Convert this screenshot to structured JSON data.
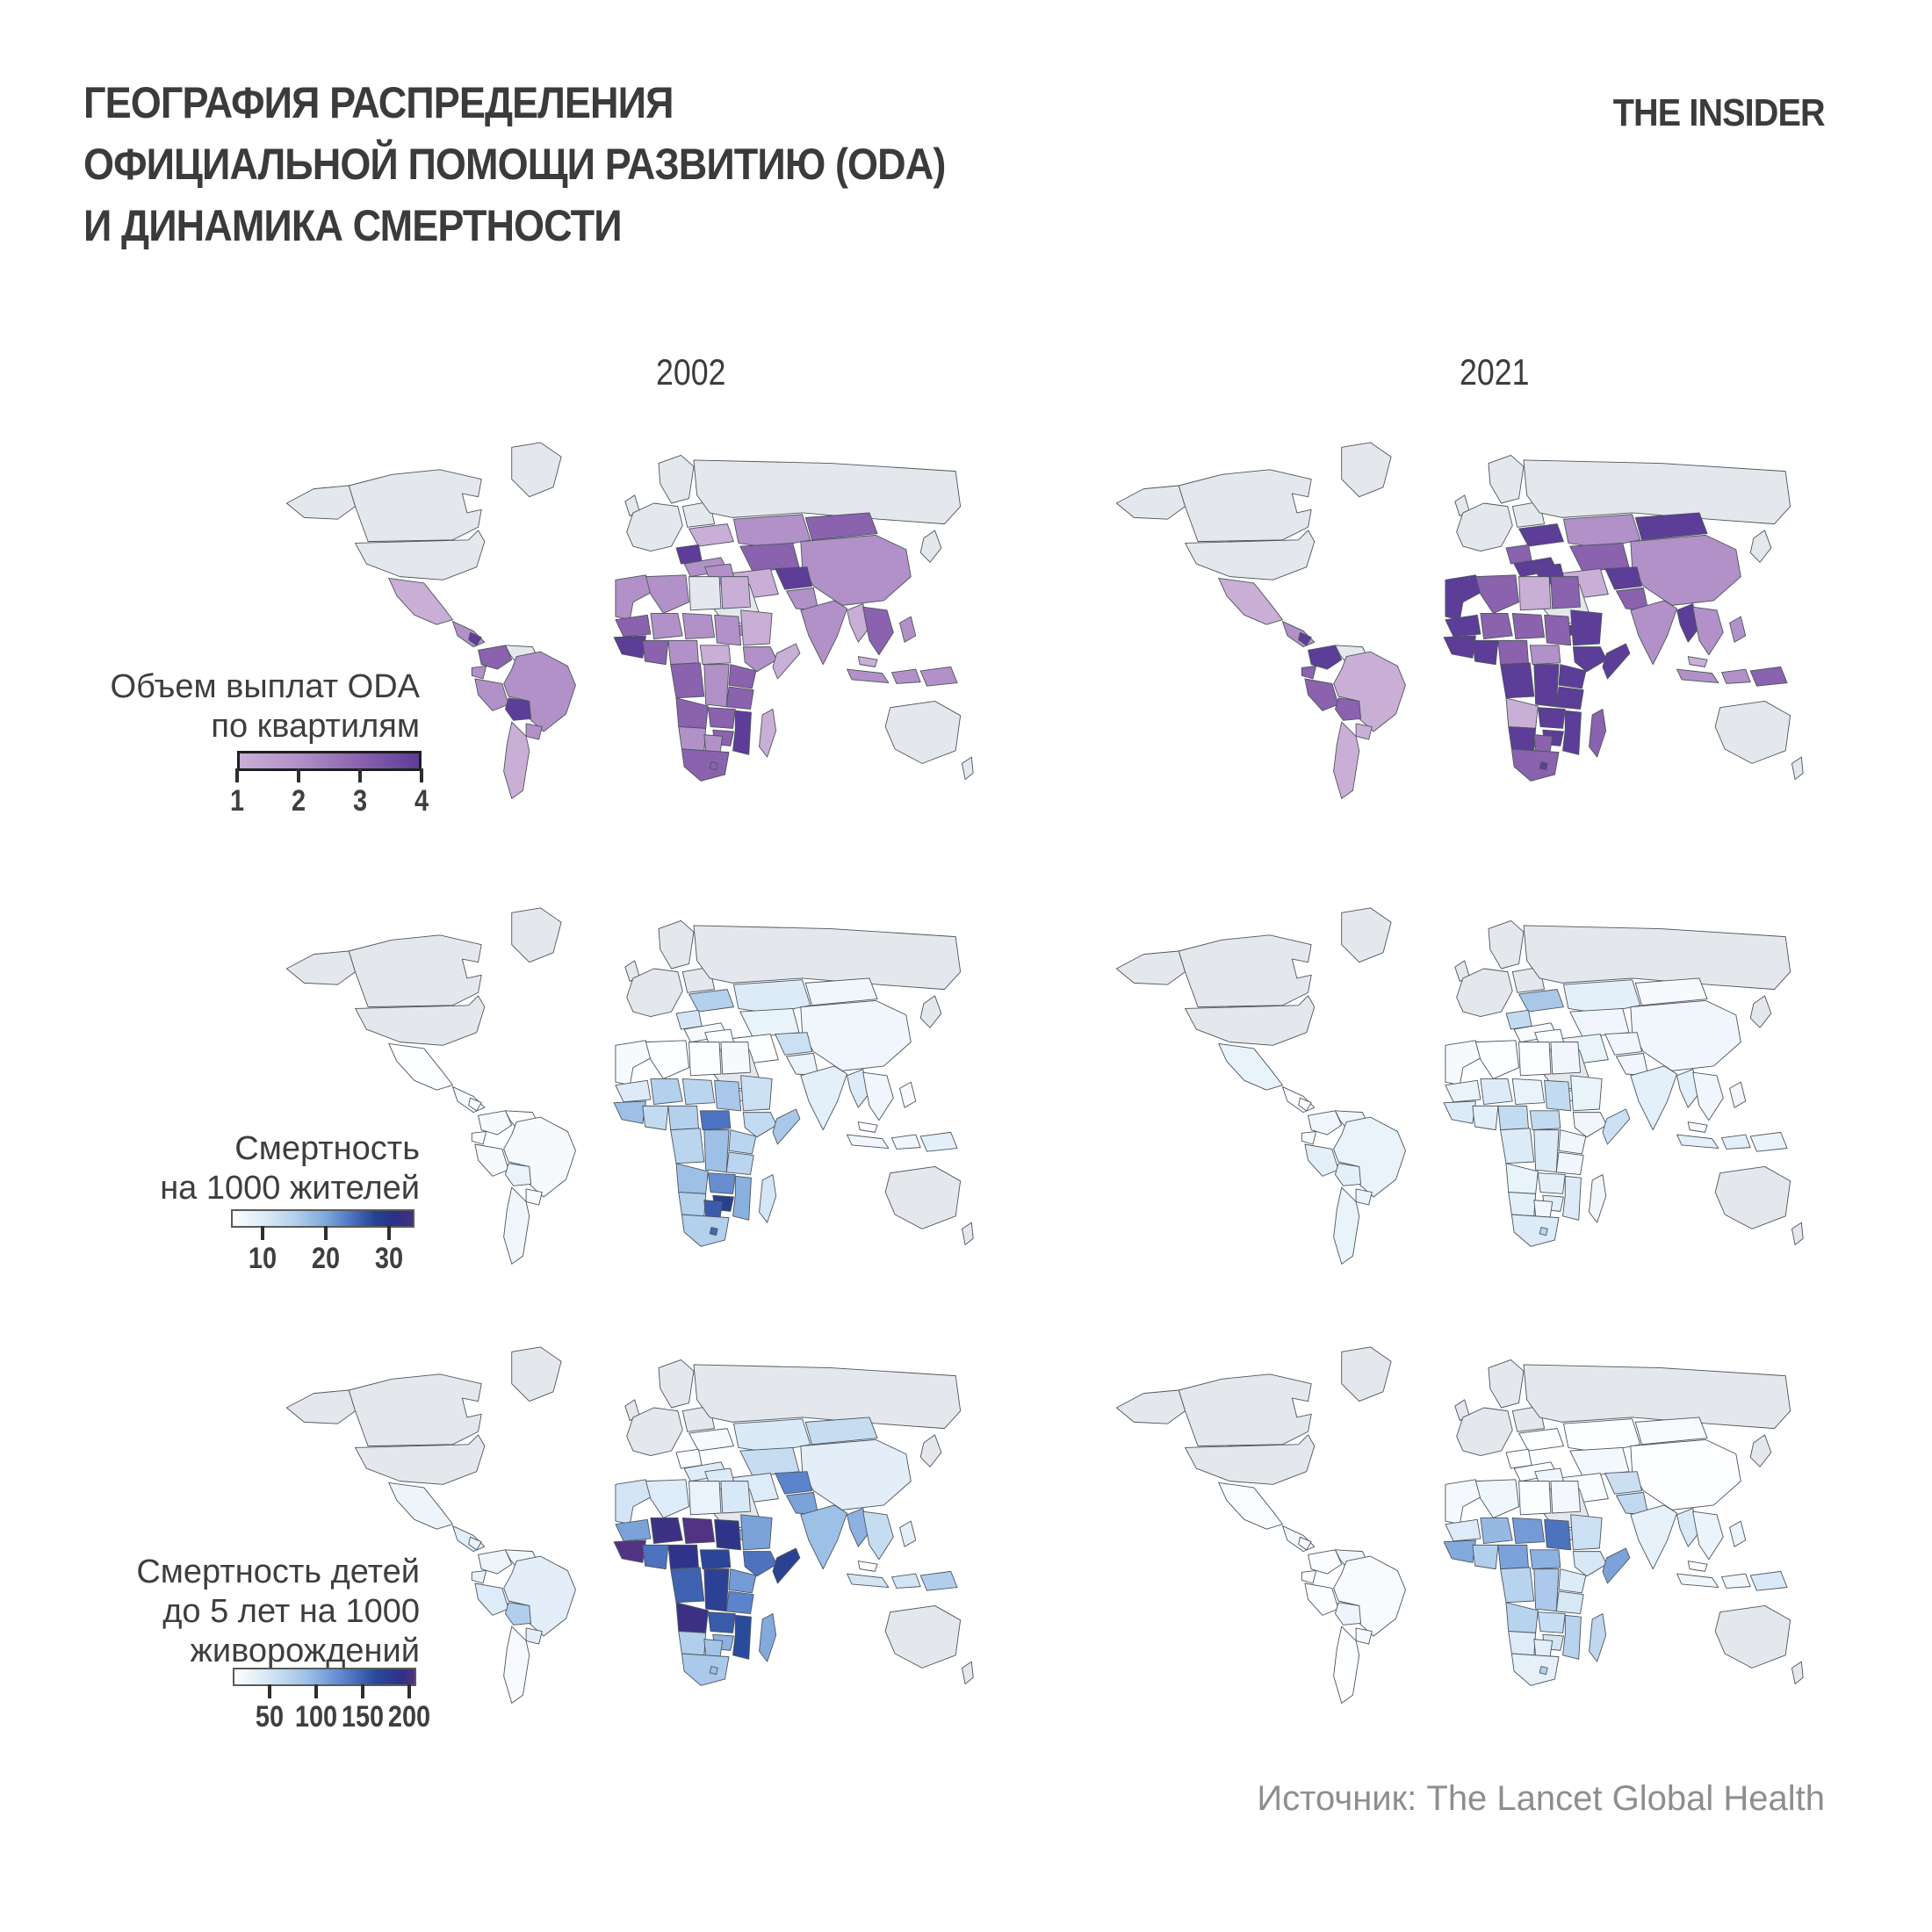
{
  "header": {
    "title_lines": [
      "ГЕОГРАФИЯ РАСПРЕДЕЛЕНИЯ",
      "ОФИЦИАЛЬНОЙ ПОМОЩИ РАЗВИТИЮ (ODA)",
      "И ДИНАМИКА СМЕРТНОСТИ"
    ],
    "logo": "THE INSIDER"
  },
  "columns": {
    "left_year": "2002",
    "right_year": "2021"
  },
  "source": "Источник: The Lancet Global Health",
  "palette": {
    "nodata": "#e4e8ed",
    "border": "#4e565f",
    "title_color": "#3b3b3b",
    "source_color": "#8e8e8e"
  },
  "legends": [
    {
      "id": "oda",
      "label_lines": [
        "Объем выплат ODA",
        "по квартилям"
      ],
      "ticks": [
        "1",
        "2",
        "3",
        "4"
      ],
      "tick_pos": [
        0,
        33.3,
        66.7,
        100
      ],
      "scale": "oda"
    },
    {
      "id": "mortality",
      "label_lines": [
        "Смертность",
        "на 1000 жителей"
      ],
      "ticks": [
        "10",
        "20",
        "30"
      ],
      "tick_pos": [
        17.2,
        51.7,
        86.2
      ],
      "scale": "mortality"
    },
    {
      "id": "child",
      "label_lines": [
        "Смертность детей",
        "до 5 лет на 1000",
        "живорождений"
      ],
      "ticks": [
        "50",
        "100",
        "150",
        "200"
      ],
      "tick_pos": [
        20.2,
        45.5,
        70.7,
        96.0
      ],
      "scale": "child"
    }
  ],
  "scales": {
    "oda": {
      "type": "discrete",
      "palette": [
        "#c9aed6",
        "#b191c7",
        "#8a62ae",
        "#5c3d97"
      ]
    },
    "mortality": {
      "type": "linear",
      "stops": [
        [
          5,
          "#fdfeff"
        ],
        [
          10,
          "#dcebf7"
        ],
        [
          15,
          "#b3d0ec"
        ],
        [
          20,
          "#7fa8dc"
        ],
        [
          24,
          "#4d74c4"
        ],
        [
          28,
          "#27418f"
        ],
        [
          31,
          "#2a3187"
        ],
        [
          34,
          "#433085"
        ]
      ]
    },
    "child": {
      "type": "linear",
      "stops": [
        [
          10,
          "#fdfeff"
        ],
        [
          50,
          "#d3e5f5"
        ],
        [
          90,
          "#9dc0e6"
        ],
        [
          130,
          "#5b84cd"
        ],
        [
          165,
          "#2a4a9c"
        ],
        [
          195,
          "#303085"
        ],
        [
          208,
          "#523383"
        ]
      ]
    }
  },
  "chart_data": [
    {
      "panel": "oda-2002",
      "type": "choropleth",
      "year": "2002",
      "metric": "Объем выплат ODA по квартилям",
      "scale": "oda",
      "range": [
        1,
        4
      ],
      "values": {
        "mexico": 1,
        "central-america": 2,
        "nicaragua": 4,
        "colombia": 3,
        "ecuador": 2,
        "peru": 2,
        "bolivia": 4,
        "brazil": 2,
        "paraguay": 2,
        "southern-cone": 1,
        "ukraine": 1,
        "balkans": 4,
        "turkey": 2,
        "kazakhstan": 2,
        "central-asia": 3,
        "mongolia": 3,
        "china": 2,
        "iran": 1,
        "iraq-syria": 2,
        "yemen": 2,
        "afghanistan": 4,
        "pakistan": 2,
        "india": 2,
        "myanmar": 1,
        "indochina": 3,
        "malaysia": 1,
        "indonesia": 2,
        "philippines": 2,
        "papua": 2,
        "morocco": 2,
        "algeria": 2,
        "egypt": 1,
        "mauritania": 3,
        "mali": 2,
        "niger": 2,
        "chad": 2,
        "sudan": 1,
        "west-guinea": 4,
        "gulf-coast": 3,
        "nigeria": 2,
        "central-africa": 3,
        "car": 1,
        "ethiopia": 2,
        "somalia": 1,
        "east-africa": 3,
        "tanzania": 3,
        "drc": 2,
        "angola": 3,
        "zambia": 3,
        "mozambique": 4,
        "zimbabwe": 3,
        "namibia": 2,
        "botswana": 2,
        "south-africa": 3,
        "lesotho": 3,
        "madagascar": 1
      }
    },
    {
      "panel": "oda-2021",
      "type": "choropleth",
      "year": "2021",
      "metric": "Объем выплат ODA по квартилям",
      "scale": "oda",
      "range": [
        1,
        4
      ],
      "values": {
        "mexico": 1,
        "central-america": 2,
        "nicaragua": 4,
        "colombia": 4,
        "ecuador": 3,
        "peru": 3,
        "bolivia": 3,
        "brazil": 1,
        "paraguay": 1,
        "southern-cone": 1,
        "ukraine": 4,
        "balkans": 3,
        "turkey": 4,
        "kazakhstan": 2,
        "central-asia": 3,
        "mongolia": 4,
        "china": 2,
        "iran": 1,
        "iraq-syria": 4,
        "yemen": 4,
        "afghanistan": 4,
        "pakistan": 3,
        "india": 2,
        "myanmar": 4,
        "indochina": 2,
        "malaysia": 1,
        "indonesia": 2,
        "philippines": 2,
        "papua": 3,
        "morocco": 4,
        "algeria": 3,
        "libya": 1,
        "egypt": 3,
        "mauritania": 4,
        "mali": 3,
        "niger": 3,
        "chad": 3,
        "sudan": 4,
        "west-guinea": 4,
        "gulf-coast": 4,
        "nigeria": 3,
        "central-africa": 4,
        "car": 2,
        "ethiopia": 4,
        "somalia": 4,
        "east-africa": 4,
        "tanzania": 4,
        "drc": 4,
        "angola": 1,
        "zambia": 4,
        "mozambique": 4,
        "zimbabwe": 4,
        "namibia": 4,
        "botswana": 3,
        "south-africa": 3,
        "lesotho": 4,
        "madagascar": 3
      }
    },
    {
      "panel": "mort-2002",
      "type": "choropleth",
      "year": "2002",
      "metric": "Смертность на 1000 жителей",
      "scale": "mortality",
      "range": [
        4,
        34
      ],
      "values": {
        "mexico": 5,
        "central-america": 6,
        "nicaragua": 5,
        "colombia": 6,
        "venezuela": 5,
        "ecuador": 5,
        "peru": 6,
        "bolivia": 8,
        "brazil": 6,
        "paraguay": 6,
        "southern-cone": 7,
        "ukraine": 15,
        "balkans": 11,
        "turkey": 6,
        "kazakhstan": 10,
        "central-asia": 8,
        "mongolia": 7,
        "china": 7,
        "iran": 5,
        "iraq-syria": 5,
        "yemen": 9,
        "afghanistan": 12,
        "pakistan": 8,
        "india": 9,
        "myanmar": 10,
        "indochina": 7,
        "malaysia": 5,
        "indonesia": 7,
        "philippines": 6,
        "papua": 9,
        "morocco": 6,
        "algeria": 5,
        "libya": 4,
        "egypt": 6,
        "mauritania": 10,
        "mali": 15,
        "niger": 14,
        "chad": 16,
        "sudan": 12,
        "west-guinea": 17,
        "gulf-coast": 13,
        "nigeria": 15,
        "central-africa": 14,
        "car": 24,
        "ethiopia": 13,
        "somalia": 16,
        "east-africa": 14,
        "tanzania": 14,
        "drc": 17,
        "angola": 17,
        "zambia": 22,
        "mozambique": 19,
        "zimbabwe": 28,
        "namibia": 15,
        "botswana": 26,
        "south-africa": 15,
        "lesotho": 25,
        "madagascar": 11
      }
    },
    {
      "panel": "mort-2021",
      "type": "choropleth",
      "year": "2021",
      "metric": "Смертность на 1000 жителей",
      "scale": "mortality",
      "range": [
        4,
        34
      ],
      "values": {
        "mexico": 8,
        "central-america": 5,
        "nicaragua": 5,
        "colombia": 7,
        "venezuela": 7,
        "ecuador": 6,
        "peru": 9,
        "bolivia": 9,
        "brazil": 8,
        "paraguay": 8,
        "southern-cone": 8,
        "ukraine": 16,
        "balkans": 13,
        "turkey": 6,
        "kazakhstan": 9,
        "central-asia": 7,
        "mongolia": 6,
        "china": 7,
        "iran": 8,
        "iraq-syria": 5,
        "yemen": 6,
        "afghanistan": 7,
        "pakistan": 7,
        "india": 9,
        "myanmar": 9,
        "indochina": 7,
        "malaysia": 6,
        "indonesia": 9,
        "philippines": 7,
        "papua": 8,
        "morocco": 6,
        "algeria": 5,
        "libya": 5,
        "egypt": 7,
        "mauritania": 8,
        "mali": 10,
        "niger": 8,
        "chad": 13,
        "sudan": 8,
        "west-guinea": 10,
        "gulf-coast": 9,
        "nigeria": 13,
        "central-africa": 10,
        "car": 13,
        "ethiopia": 7,
        "somalia": 12,
        "east-africa": 7,
        "tanzania": 7,
        "drc": 10,
        "angola": 8,
        "zambia": 9,
        "mozambique": 10,
        "zimbabwe": 9,
        "namibia": 9,
        "botswana": 7,
        "south-africa": 10,
        "lesotho": 14,
        "madagascar": 7
      }
    },
    {
      "panel": "u5-2002",
      "type": "choropleth",
      "year": "2002",
      "metric": "Смертность детей до 5 лет на 1000 живорождений",
      "scale": "child",
      "range": [
        5,
        215
      ],
      "values": {
        "mexico": 25,
        "central-america": 35,
        "nicaragua": 30,
        "colombia": 25,
        "venezuela": 22,
        "ecuador": 30,
        "peru": 40,
        "bolivia": 75,
        "brazil": 35,
        "paraguay": 35,
        "southern-cone": 16,
        "ukraine": 17,
        "balkans": 12,
        "turkey": 40,
        "kazakhstan": 42,
        "central-asia": 60,
        "mongolia": 60,
        "china": 35,
        "iran": 40,
        "iraq-syria": 42,
        "yemen": 100,
        "afghanistan": 130,
        "pakistan": 110,
        "india": 90,
        "myanmar": 100,
        "indochina": 60,
        "malaysia": 9,
        "indonesia": 50,
        "philippines": 35,
        "papua": 75,
        "morocco": 50,
        "algeria": 40,
        "libya": 28,
        "egypt": 45,
        "mauritania": 110,
        "mali": 200,
        "niger": 210,
        "chad": 190,
        "sudan": 110,
        "west-guinea": 210,
        "gulf-coast": 140,
        "nigeria": 190,
        "central-africa": 150,
        "car": 170,
        "ethiopia": 140,
        "somalia": 175,
        "east-africa": 115,
        "tanzania": 130,
        "drc": 175,
        "angola": 200,
        "zambia": 155,
        "mozambique": 165,
        "zimbabwe": 100,
        "namibia": 75,
        "botswana": 85,
        "south-africa": 80,
        "lesotho": 90,
        "madagascar": 105
      }
    },
    {
      "panel": "u5-2021",
      "type": "choropleth",
      "year": "2021",
      "metric": "Смертность детей до 5 лет на 1000 живорождений",
      "scale": "child",
      "range": [
        5,
        215
      ],
      "values": {
        "mexico": 14,
        "central-america": 20,
        "nicaragua": 16,
        "colombia": 13,
        "venezuela": 24,
        "ecuador": 13,
        "peru": 12,
        "bolivia": 25,
        "brazil": 15,
        "paraguay": 18,
        "southern-cone": 8,
        "ukraine": 8,
        "balkans": 6,
        "turkey": 10,
        "kazakhstan": 10,
        "central-asia": 20,
        "mongolia": 15,
        "china": 7,
        "iran": 13,
        "iraq-syria": 24,
        "yemen": 60,
        "afghanistan": 56,
        "pakistan": 63,
        "india": 31,
        "myanmar": 44,
        "indochina": 26,
        "malaysia": 8,
        "indonesia": 22,
        "philippines": 27,
        "papua": 43,
        "morocco": 18,
        "algeria": 22,
        "libya": 11,
        "egypt": 19,
        "mauritania": 40,
        "mali": 95,
        "niger": 115,
        "chad": 140,
        "sudan": 55,
        "west-guinea": 105,
        "gulf-coast": 75,
        "nigeria": 110,
        "central-africa": 70,
        "car": 100,
        "ethiopia": 47,
        "somalia": 110,
        "east-africa": 41,
        "tanzania": 47,
        "drc": 80,
        "angola": 70,
        "zambia": 58,
        "mozambique": 70,
        "zimbabwe": 50,
        "namibia": 40,
        "botswana": 35,
        "south-africa": 33,
        "lesotho": 73,
        "madagascar": 65
      }
    }
  ]
}
